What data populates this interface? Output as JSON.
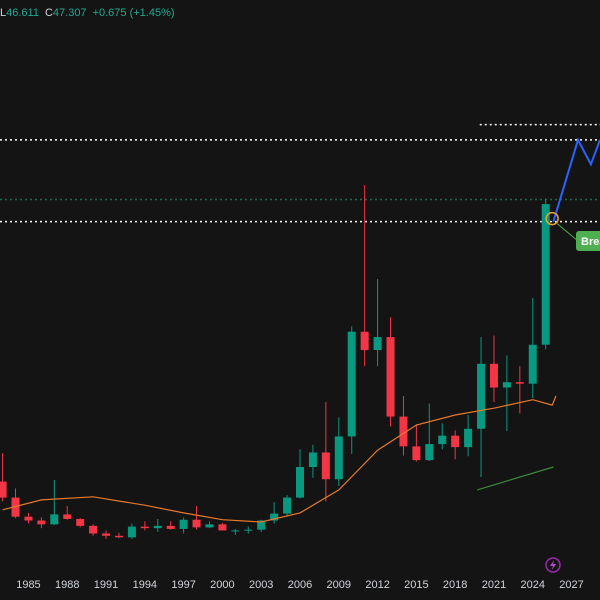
{
  "header": {
    "low_label": "L",
    "low": 46.611,
    "close_label": "C",
    "close": 47.307,
    "change": "+0.675 (+1.45%)"
  },
  "chart_data": {
    "type": "candlestick",
    "xlim": [
      1982.8,
      2029.2
    ],
    "ylim": [
      -4.5,
      74
    ],
    "xticks": [
      1985,
      1988,
      1991,
      1994,
      1997,
      2000,
      2003,
      2006,
      2009,
      2012,
      2015,
      2018,
      2021,
      2024,
      2027
    ],
    "up_color": "#089981",
    "down_color": "#f23645",
    "x": [
      1983,
      1984,
      1985,
      1986,
      1987,
      1988,
      1989,
      1990,
      1991,
      1992,
      1993,
      1994,
      1995,
      1996,
      1997,
      1998,
      1999,
      2000,
      2001,
      2002,
      2003,
      2004,
      2005,
      2006,
      2007,
      2008,
      2009,
      2010,
      2011,
      2012,
      2013,
      2014,
      2015,
      2016,
      2017,
      2018,
      2019,
      2020,
      2021,
      2022,
      2023,
      2024,
      2025
    ],
    "open": [
      11,
      8.9,
      6.4,
      5.9,
      5.4,
      6.7,
      6.1,
      5.2,
      4.2,
      3.9,
      3.7,
      5.1,
      4.9,
      5.2,
      4.8,
      6.0,
      5.0,
      5.4,
      4.6,
      4.6,
      4.7,
      5.9,
      6.8,
      8.9,
      12.9,
      14.8,
      11.3,
      16.9,
      30.6,
      28.2,
      29.9,
      19.5,
      15.6,
      13.8,
      15.9,
      17.0,
      15.5,
      17.9,
      26.4,
      23.3,
      24.0,
      23.8,
      28.9
    ],
    "high": [
      14.7,
      10.1,
      6.9,
      6.3,
      11.2,
      7.8,
      6.2,
      5.4,
      4.6,
      4.3,
      5.5,
      5.8,
      6.1,
      5.8,
      6.3,
      7.8,
      5.8,
      5.6,
      4.8,
      5.1,
      6.0,
      8.3,
      9.2,
      15.2,
      15.8,
      21.4,
      19.4,
      31.3,
      49.8,
      37.5,
      32.5,
      22.2,
      18.5,
      21.2,
      18.6,
      17.7,
      19.7,
      29.9,
      30.1,
      27.5,
      26.1,
      35.0,
      48.0
    ],
    "low": [
      8.4,
      6.2,
      5.5,
      4.9,
      5.3,
      6.0,
      5.0,
      3.9,
      3.5,
      3.6,
      3.5,
      4.6,
      4.4,
      4.7,
      4.2,
      4.7,
      4.9,
      4.6,
      4.0,
      4.2,
      4.4,
      5.5,
      6.4,
      8.8,
      11.5,
      8.4,
      10.4,
      14.6,
      26.1,
      26.1,
      18.2,
      14.4,
      13.6,
      13.7,
      15.2,
      13.9,
      14.3,
      11.6,
      21.4,
      17.6,
      19.9,
      21.9,
      28.3
    ],
    "close": [
      8.9,
      6.4,
      5.9,
      5.4,
      6.7,
      6.1,
      5.2,
      4.2,
      3.9,
      3.7,
      5.1,
      4.9,
      5.2,
      4.8,
      6.0,
      5.0,
      5.4,
      4.6,
      4.6,
      4.7,
      5.9,
      6.8,
      8.9,
      12.9,
      14.8,
      11.3,
      16.9,
      30.6,
      28.2,
      29.9,
      19.5,
      15.6,
      13.8,
      15.9,
      17.0,
      15.5,
      17.9,
      26.4,
      23.3,
      24.0,
      23.8,
      28.9,
      47.3
    ],
    "lines": [
      {
        "color": "#e8792b",
        "x": [
          1983,
          1986,
          1990,
          1994,
          1997,
          2000,
          2003,
          2006,
          2009,
          2012,
          2015,
          2018,
          2021,
          2024,
          2025.5,
          2025.8
        ],
        "values": [
          7.3,
          8.6,
          9.0,
          7.9,
          6.9,
          6.0,
          5.7,
          6.9,
          9.9,
          15.1,
          18.4,
          19.7,
          20.6,
          21.7,
          21.0,
          22.2
        ]
      },
      {
        "color": "#3c8a3c",
        "x": [
          2019.7,
          2025.6
        ],
        "values": [
          9.9,
          12.9
        ]
      },
      {
        "color": "#2962ff",
        "x": [
          2025.6,
          2027.5,
          2028.5,
          2029.2
        ],
        "values": [
          45,
          55.7,
          52.5,
          55.7
        ]
      }
    ],
    "levels": [
      {
        "value": 55.7,
        "color": "#ffffff",
        "from": 1982.8
      },
      {
        "value": 45,
        "color": "#ffffff",
        "from": 1982.8
      },
      {
        "value": 57.7,
        "color": "#ffffff",
        "from": 2019.9
      },
      {
        "value": 47.9,
        "color": "#1e6b4e",
        "from": 1982.8
      }
    ],
    "marker": {
      "x": 2025.5,
      "value": 45.4
    },
    "label": "Brea"
  }
}
